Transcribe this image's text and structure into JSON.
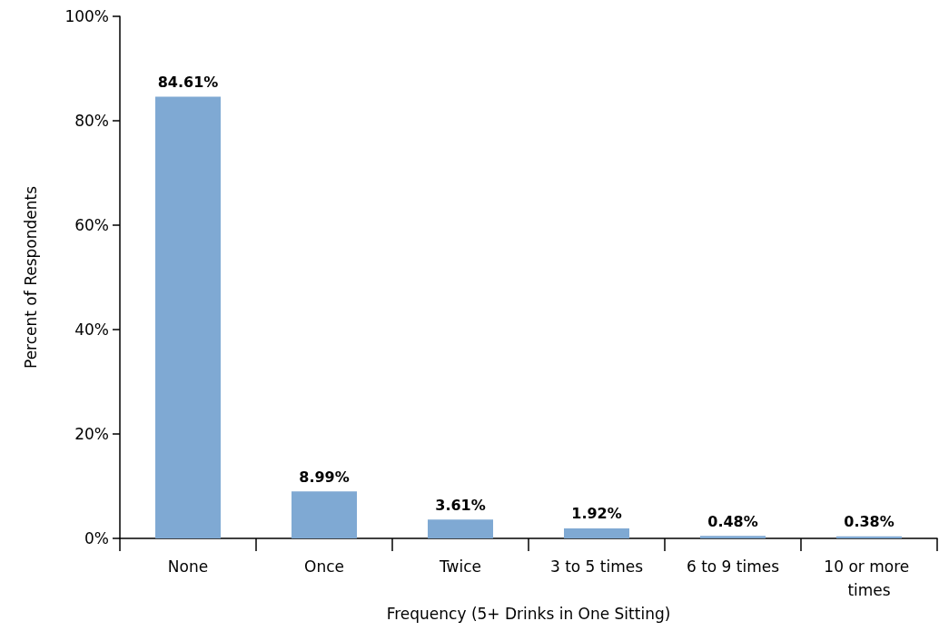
{
  "chart_data": {
    "type": "bar",
    "xlabel": "Frequency (5+ Drinks in One Sitting)",
    "ylabel": "Percent of Respondents",
    "categories": [
      "None",
      "Once",
      "Twice",
      "3 to 5 times",
      "6 to 9 times",
      "10 or more times"
    ],
    "values": [
      84.61,
      8.99,
      3.61,
      1.92,
      0.48,
      0.38
    ],
    "value_labels": [
      "84.61%",
      "8.99%",
      "3.61%",
      "1.92%",
      "0.48%",
      "0.38%"
    ],
    "color": "#7fa9d3",
    "ylim": [
      0,
      100
    ],
    "yticks": [
      {
        "value": 0,
        "label": "0%"
      },
      {
        "value": 20,
        "label": "20%"
      },
      {
        "value": 40,
        "label": "40%"
      },
      {
        "value": 60,
        "label": "60%"
      },
      {
        "value": 80,
        "label": "80%"
      },
      {
        "value": 100,
        "label": "100%"
      }
    ],
    "grid": false
  }
}
